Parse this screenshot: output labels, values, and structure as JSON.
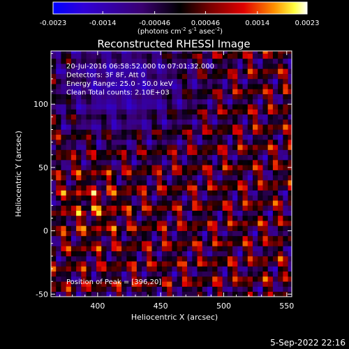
{
  "chart_data": {
    "type": "heatmap",
    "title": "Reconstructed RHESSI Image",
    "xlabel": "Heliocentric X (arcsec)",
    "ylabel": "Heliocentric Y (arcsec)",
    "xlim": [
      363,
      554
    ],
    "ylim": [
      -52,
      142
    ],
    "x_ticks": [
      400,
      450,
      500,
      550
    ],
    "y_ticks": [
      -50,
      0,
      50,
      100
    ],
    "colorbar": {
      "range": [
        -0.0023,
        0.0023
      ],
      "ticks": [
        "-0.0023",
        "-0.0014",
        "-0.00046",
        "0.00046",
        "0.0014",
        "0.0023"
      ],
      "unit_label": "(photons cm",
      "unit_exp1": "-2",
      "unit_mid": " s",
      "unit_exp2": "-1",
      "unit_mid2": " asec",
      "unit_exp3": "-2",
      "unit_end": ")"
    },
    "annotations": [
      "20-Jul-2016 06:58:52.000 to 07:01:32.000",
      "Detectors: 3F 8F, Att 0",
      "Energy Range: 25.0 - 50.0 keV",
      "Clean     Total counts: 2.10E+03"
    ],
    "peak_label": "Position of Peak = [396,20]",
    "peak": {
      "x": 396,
      "y": 20
    },
    "grid": false,
    "pattern": {
      "description_values": "flux is negative (purple/blue) in upper-left region and positive banded ripples elsewhere",
      "min": -0.0023,
      "max": 0.0023
    }
  },
  "footer_date": "5-Sep-2022 22:16"
}
